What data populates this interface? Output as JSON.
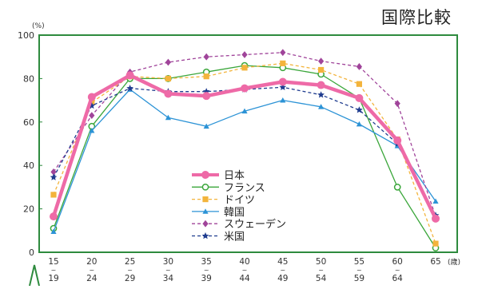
{
  "header": {
    "title": "国際比較"
  },
  "chart_data": {
    "type": "line",
    "title": "国際比較",
    "ylabel": "(%)",
    "xunit": "(歳)",
    "ylim": [
      0,
      100
    ],
    "yticks": [
      0,
      20,
      40,
      60,
      80,
      100
    ],
    "grid": false,
    "legend_position": "center-bottom",
    "categories": [
      {
        "top": "15",
        "bottom": "19"
      },
      {
        "top": "20",
        "bottom": "24"
      },
      {
        "top": "25",
        "bottom": "29"
      },
      {
        "top": "30",
        "bottom": "34"
      },
      {
        "top": "35",
        "bottom": "39"
      },
      {
        "top": "40",
        "bottom": "44"
      },
      {
        "top": "45",
        "bottom": "49"
      },
      {
        "top": "50",
        "bottom": "54"
      },
      {
        "top": "55",
        "bottom": "59"
      },
      {
        "top": "60",
        "bottom": "64"
      },
      {
        "top": "65",
        "bottom": ""
      }
    ],
    "tilde": "~",
    "series": [
      {
        "name": "日本",
        "color": "#ee6aa7",
        "marker": "circle-filled",
        "dash": false,
        "width": "thick",
        "values": [
          16.5,
          71.5,
          81.5,
          73,
          72,
          75.5,
          78.5,
          77,
          71,
          51.5,
          15.5
        ]
      },
      {
        "name": "フランス",
        "color": "#3aa63a",
        "marker": "circle-open",
        "dash": false,
        "width": "thin",
        "values": [
          11,
          58,
          80,
          80,
          83,
          86,
          85,
          82,
          71,
          30,
          2
        ]
      },
      {
        "name": "ドイツ",
        "color": "#f3b43c",
        "marker": "square",
        "dash": true,
        "width": "thin",
        "values": [
          26.5,
          69,
          81,
          80,
          81,
          85,
          87,
          84,
          77.5,
          52,
          4
        ]
      },
      {
        "name": "韓国",
        "color": "#2c93d6",
        "marker": "triangle",
        "dash": false,
        "width": "thin",
        "values": [
          9.5,
          56,
          75,
          62,
          58,
          65,
          70,
          67,
          59,
          49,
          23.5
        ]
      },
      {
        "name": "スウェーデン",
        "color": "#a0449a",
        "marker": "diamond",
        "dash": true,
        "width": "thin",
        "values": [
          37,
          63,
          83,
          87.5,
          90,
          91,
          92,
          88,
          85.5,
          68.5,
          16.5
        ]
      },
      {
        "name": "米国",
        "color": "#1f3c8f",
        "marker": "star",
        "dash": true,
        "width": "thin",
        "values": [
          34.5,
          67.5,
          75.5,
          74,
          74,
          75,
          76,
          72.5,
          65.5,
          50,
          17
        ]
      }
    ]
  }
}
